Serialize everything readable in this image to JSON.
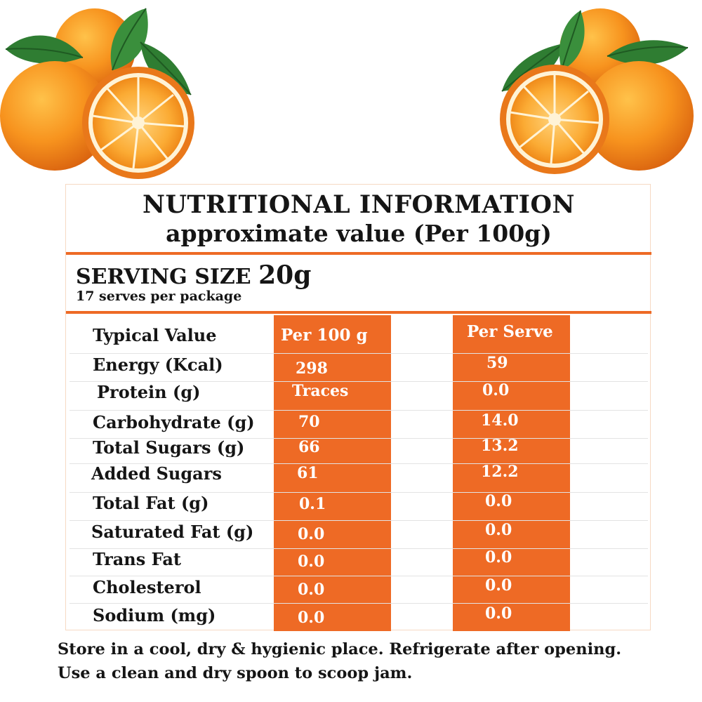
{
  "header": {
    "title": "NUTRITIONAL INFORMATION",
    "subtitle": "approximate value (Per 100g)"
  },
  "serving": {
    "label": "SERVING SIZE",
    "size": "20g",
    "serves": "17 serves per package"
  },
  "table": {
    "columns": [
      "Typical Value",
      "Per 100 g",
      "Per Serve"
    ],
    "rows": [
      {
        "name": "Energy (Kcal)",
        "per100": "298",
        "perServe": "59"
      },
      {
        "name": "Protein (g)",
        "per100": "Traces",
        "perServe": "0.0"
      },
      {
        "name": "Carbohydrate (g)",
        "per100": "70",
        "perServe": "14.0"
      },
      {
        "name": "Total Sugars (g)",
        "per100": "66",
        "perServe": "13.2"
      },
      {
        "name": "Added Sugars",
        "per100": "61",
        "perServe": "12.2"
      },
      {
        "name": "Total Fat (g)",
        "per100": "0.1",
        "perServe": "0.0"
      },
      {
        "name": "Saturated Fat (g)",
        "per100": "0.0",
        "perServe": "0.0"
      },
      {
        "name": "Trans Fat",
        "per100": "0.0",
        "perServe": "0.0"
      },
      {
        "name": "Cholesterol",
        "per100": "0.0",
        "perServe": "0.0"
      },
      {
        "name": "Sodium (mg)",
        "per100": "0.0",
        "perServe": "0.0"
      }
    ]
  },
  "footer": {
    "line1": "Store in a cool, dry & hygienic place. Refrigerate after opening.",
    "line2": "Use a clean and dry spoon to scoop jam."
  },
  "colors": {
    "accent": "#ee6a25",
    "text": "#151515",
    "orange_fruit": "#f58c1e",
    "leaf": "#2f7d32"
  },
  "images": [
    "oranges-left-illustration",
    "oranges-right-illustration"
  ]
}
